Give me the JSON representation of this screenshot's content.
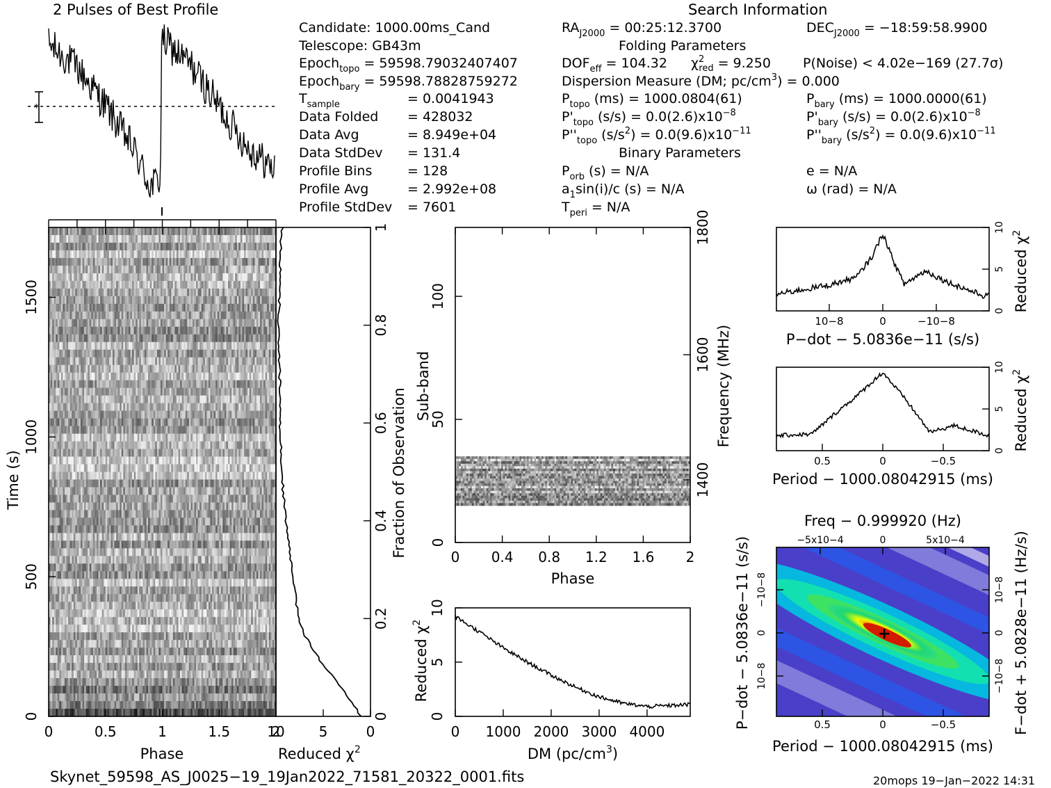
{
  "header": {
    "profile_title": "2 Pulses of Best Profile",
    "search_title": "Search Information"
  },
  "info_left": [
    {
      "label": "Candidate:  1000.00ms_Cand",
      "value": ""
    },
    {
      "label": "Telescope:  GB43m",
      "value": ""
    },
    {
      "label": "Epoch",
      "sub": "topo",
      "value": "= 59598.79032407407"
    },
    {
      "label": "Epoch",
      "sub": "bary",
      "value": "= 59598.78828759272"
    },
    {
      "label": "T",
      "sub": "sample",
      "value": "=  0.0041943"
    },
    {
      "label": "Data Folded",
      "value": "=  428032"
    },
    {
      "label": "Data Avg",
      "value": "=  8.949e+04"
    },
    {
      "label": "Data StdDev",
      "value": "=  131.4"
    },
    {
      "label": "Profile Bins",
      "value": "=  128"
    },
    {
      "label": "Profile Avg",
      "value": "=  2.992e+08"
    },
    {
      "label": "Profile StdDev",
      "value": "=  7601"
    }
  ],
  "info_mid": {
    "ra": "RA",
    "ra_sub": "J2000",
    "ra_value": "= 00:25:12.3700",
    "folding_title": "Folding Parameters",
    "dof": "DOF",
    "dof_sub": "eff",
    "dof_value": "= 104.32",
    "chi": "χ",
    "chi_sup": "2",
    "chi_sub": "red",
    "chi_value": "= 9.250",
    "dm_line": "Dispersion Measure (DM; pc/cm",
    "dm_sup": "3",
    "dm_value": ") = 0.000",
    "ptopo": "P",
    "ptopo_sub": "topo",
    "ptopo_value": "(ms) =  1000.0804(61)",
    "pdot": "P'",
    "pdot_sub": "topo",
    "pdot_value": "(s/s) = 0.0(2.6)x10",
    "pdot_exp": "−8",
    "pddot": "P''",
    "pddot_sub": "topo",
    "pddot_value": "(s/s",
    "pddot_sup": "2",
    "pddot_value2": ") = 0.0(9.6)x10",
    "pddot_exp": "−11",
    "binary_title": "Binary Parameters",
    "porb": "P",
    "porb_sub": "orb",
    "porb_value": "(s) = N/A",
    "asini": "a",
    "asini_sub": "1",
    "asini_value": "sin(i)/c (s) = N/A",
    "tperi": "T",
    "tperi_sub": "peri",
    "tperi_value": "= N/A"
  },
  "info_right": {
    "dec": "DEC",
    "dec_sub": "J2000",
    "dec_value": "= −18:59:58.9900",
    "noise": "P(Noise) < 4.02e−169  (27.7σ)",
    "pbary": "P",
    "pbary_sub": "bary",
    "pbary_value": "(ms) =  1000.0000(61)",
    "pdot": "P'",
    "pdot_sub": "bary",
    "pdot_value": "(s/s) = 0.0(2.6)x10",
    "pdot_exp": "−8",
    "pddot": "P''",
    "pddot_sub": "bary",
    "pddot_value": "(s/s",
    "pddot_sup": "2",
    "pddot_value2": ") = 0.0(9.6)x10",
    "pddot_exp": "−11",
    "ecc": "e = N/A",
    "omega": "ω (rad) = N/A"
  },
  "footer": {
    "filename": "Skynet_59598_AS_J0025−19_19Jan2022_71581_20322_0001.fits",
    "stamp": "20mops 19−Jan−2022 14:31"
  },
  "chart_data": [
    {
      "type": "line",
      "title": "2 Pulses of Best Profile",
      "xlabel": "",
      "ylabel": "",
      "x_range": [
        0,
        2
      ],
      "description_values": {
        "phase_points": [
          0.0,
          0.25,
          0.5,
          0.75,
          0.9,
          0.99,
          1.0,
          1.25,
          1.5,
          1.75,
          2.0
        ],
        "relative_level": [
          0.92,
          0.78,
          0.55,
          0.28,
          0.05,
          0.1,
          0.95,
          0.8,
          0.55,
          0.3,
          0.15
        ]
      }
    },
    {
      "type": "heatmap",
      "xlabel": "Phase",
      "ylabel": "Time (s)",
      "x_range": [
        0,
        2
      ],
      "y_range": [
        0,
        1750
      ],
      "x_ticks": [
        "0",
        "0.5",
        "1",
        "1.5",
        "2"
      ],
      "y_ticks": [
        "0",
        "500",
        "1000",
        "1500"
      ]
    },
    {
      "type": "line",
      "xlabel": "Reduced χ2",
      "ylabel": "Fraction of Observation",
      "x_range": [
        10,
        0
      ],
      "y_range": [
        0,
        1
      ],
      "x_ticks": [
        "10",
        "5",
        "0"
      ],
      "y_ticks": [
        "0",
        "0.2",
        "0.4",
        "0.6",
        "0.8",
        "1"
      ],
      "points": [
        [
          1.0,
          0.0
        ],
        [
          2.0,
          0.03
        ],
        [
          3.5,
          0.07
        ],
        [
          5.2,
          0.11
        ],
        [
          6.8,
          0.16
        ],
        [
          7.6,
          0.2
        ],
        [
          8.3,
          0.3
        ],
        [
          9.0,
          0.4
        ],
        [
          9.4,
          0.5
        ],
        [
          9.6,
          0.6
        ],
        [
          9.6,
          0.7
        ],
        [
          9.7,
          0.8
        ],
        [
          9.6,
          0.9
        ],
        [
          9.5,
          0.97
        ],
        [
          9.3,
          1.0
        ]
      ]
    },
    {
      "type": "heatmap",
      "xlabel": "Phase",
      "ylabel": "Sub-band",
      "y2label": "Frequency (MHz)",
      "x_range": [
        0,
        2
      ],
      "y_range": [
        0,
        128
      ],
      "x_ticks": [
        "0",
        "0.4",
        "0.8",
        "1.2",
        "1.6",
        "2"
      ],
      "y_ticks": [
        "0",
        "50",
        "100"
      ],
      "y2_ticks": [
        "1400",
        "1600",
        "1800"
      ],
      "populated_subbands": [
        15,
        35
      ]
    },
    {
      "type": "line",
      "xlabel": "DM (pc/cm3)",
      "ylabel": "Reduced χ2",
      "x_range": [
        0,
        4900
      ],
      "y_range": [
        0,
        10
      ],
      "x_ticks": [
        "0",
        "1000",
        "2000",
        "3000",
        "4000"
      ],
      "y_ticks": [
        "0",
        "5",
        "10"
      ],
      "points": [
        [
          0,
          9.2
        ],
        [
          500,
          7.8
        ],
        [
          1000,
          6.3
        ],
        [
          1500,
          5.0
        ],
        [
          2000,
          3.8
        ],
        [
          2500,
          2.7
        ],
        [
          3000,
          1.8
        ],
        [
          3500,
          1.2
        ],
        [
          4000,
          0.9
        ],
        [
          4500,
          1.0
        ],
        [
          4900,
          1.1
        ]
      ]
    },
    {
      "type": "line",
      "xlabel": "P−dot − 5.0836e−11 (s/s)",
      "ylabel": "Reduced χ2",
      "x_ticks": [
        "10−8",
        "0",
        "−10−8"
      ],
      "y_ticks": [
        "0",
        "5",
        "10"
      ],
      "points": [
        [
          -2.0,
          2.0
        ],
        [
          -1.0,
          3.1
        ],
        [
          -0.5,
          4.0
        ],
        [
          -0.2,
          6.5
        ],
        [
          0,
          9.3
        ],
        [
          0.2,
          6.0
        ],
        [
          0.4,
          3.2
        ],
        [
          0.8,
          4.8
        ],
        [
          1.2,
          3.5
        ],
        [
          1.9,
          1.8
        ]
      ]
    },
    {
      "type": "line",
      "xlabel": "Period − 1000.08042915 (ms)",
      "ylabel": "Reduced χ2",
      "x_ticks": [
        "0.5",
        "0",
        "−0.5"
      ],
      "y_ticks": [
        "0",
        "5",
        "10"
      ],
      "points": [
        [
          0.9,
          1.8
        ],
        [
          0.6,
          2.0
        ],
        [
          0.4,
          4.5
        ],
        [
          0.2,
          6.8
        ],
        [
          0,
          9.4
        ],
        [
          -0.2,
          6.0
        ],
        [
          -0.4,
          2.2
        ],
        [
          -0.6,
          3.0
        ],
        [
          -0.9,
          1.8
        ]
      ]
    },
    {
      "type": "heatmap",
      "title": "Freq − 0.999920 (Hz)",
      "xlabel": "Period − 1000.08042915 (ms)",
      "ylabel": "P−dot − 5.0836e−11 (s/s)",
      "y2label": "F−dot + 5.0828e−11 (Hz/s)",
      "x_ticks": [
        "0.5",
        "0",
        "−0.5"
      ],
      "x2_ticks": [
        "−5x10−4",
        "0",
        "5x10−4"
      ],
      "y_ticks": [
        "10−8",
        "0",
        "−10−8"
      ],
      "y2_ticks": [
        "10−8",
        "0",
        "−10−8"
      ],
      "peak": [
        0,
        0
      ]
    }
  ]
}
